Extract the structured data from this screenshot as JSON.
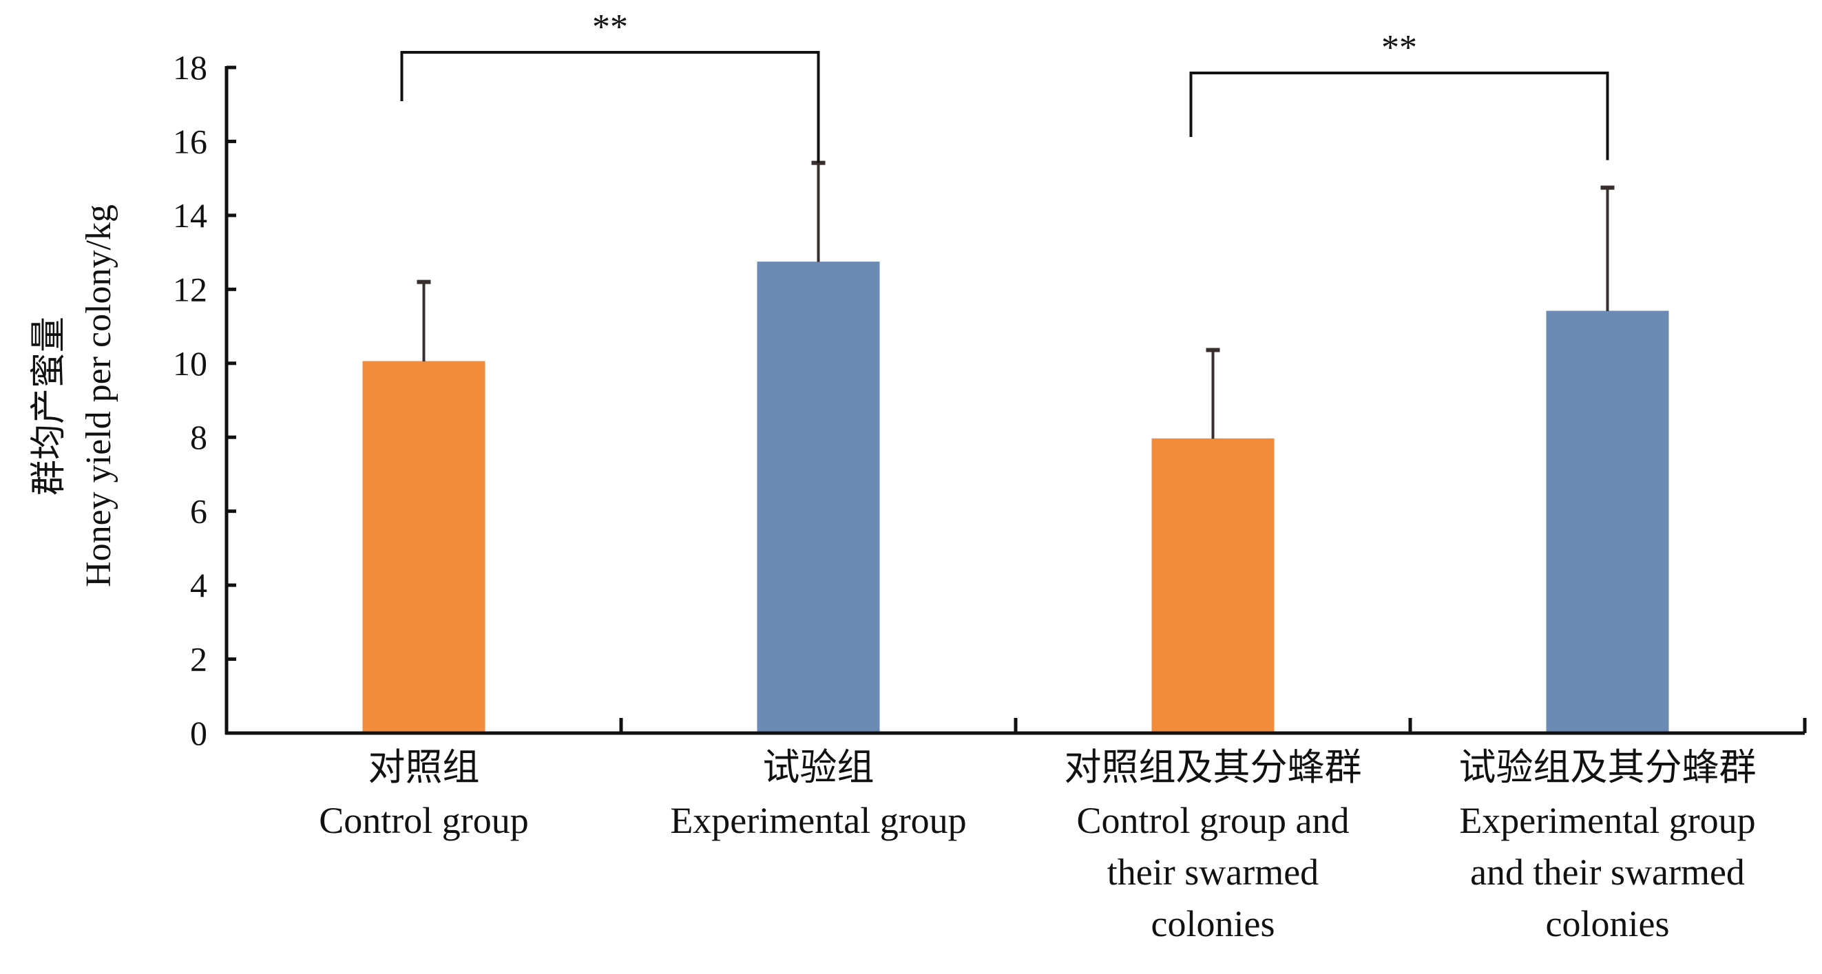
{
  "chart_data": {
    "type": "bar",
    "title": "",
    "xlabel": "",
    "ylabel_cn": "群均产蜜量",
    "ylabel": "Honey yield per colony/kg",
    "ylim": [
      0,
      18
    ],
    "yticks": [
      "0",
      "2",
      "4",
      "6",
      "8",
      "10",
      "12",
      "14",
      "16",
      "18"
    ],
    "grid": false,
    "categories": [
      {
        "cn": "对照组",
        "en": [
          "Control group"
        ]
      },
      {
        "cn": "试验组",
        "en": [
          "Experimental group"
        ]
      },
      {
        "cn": "对照组及其分蜂群",
        "en": [
          "Control group and",
          "their swarmed",
          "colonies"
        ]
      },
      {
        "cn": "试验组及其分蜂群",
        "en": [
          "Experimental group",
          "and their swarmed",
          "colonies"
        ]
      }
    ],
    "values": [
      10.05,
      12.74,
      7.96,
      11.41
    ],
    "error_upper": [
      12.2,
      15.42,
      10.36,
      14.75
    ],
    "colors": [
      "#F28B3A",
      "#6B8BB5",
      "#F28B3A",
      "#6B8BB5"
    ],
    "significance": [
      {
        "pair": [
          0,
          1
        ],
        "label": "**"
      },
      {
        "pair": [
          2,
          3
        ],
        "label": "**"
      }
    ]
  }
}
